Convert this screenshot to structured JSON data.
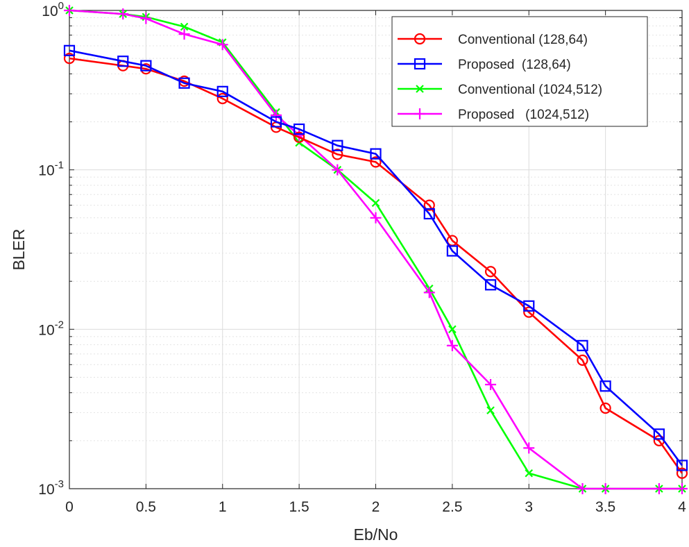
{
  "chart_data": {
    "type": "line",
    "xlabel": "Eb/No",
    "ylabel": "BLER",
    "xlim": [
      0,
      4
    ],
    "ylim": [
      0.001,
      1
    ],
    "yscale": "log",
    "grid": true,
    "minor_grid": true,
    "legend_position": "top-right",
    "x_ticks": [
      "0",
      "0.5",
      "1",
      "1.5",
      "2",
      "2.5",
      "3",
      "3.5",
      "4"
    ],
    "y_ticks": [
      {
        "value": 1,
        "base": "10",
        "exp": "0"
      },
      {
        "value": 0.1,
        "base": "10",
        "exp": "-1"
      },
      {
        "value": 0.01,
        "base": "10",
        "exp": "-2"
      },
      {
        "value": 0.001,
        "base": "10",
        "exp": "-3"
      }
    ],
    "series": [
      {
        "name": "Conventional (128,64)",
        "color": "#ff0000",
        "marker": "circle",
        "x": [
          0,
          0.35,
          0.5,
          0.75,
          1,
          1.35,
          1.5,
          1.75,
          2,
          2.35,
          2.5,
          2.75,
          3,
          3.35,
          3.5,
          3.85,
          4
        ],
        "y": [
          0.5,
          0.45,
          0.43,
          0.36,
          0.28,
          0.185,
          0.16,
          0.125,
          0.112,
          0.06,
          0.036,
          0.023,
          0.0128,
          0.0064,
          0.0032,
          0.002,
          0.00125
        ]
      },
      {
        "name": "Proposed  (128,64)",
        "color": "#0000ff",
        "marker": "square",
        "x": [
          0,
          0.35,
          0.5,
          0.75,
          1,
          1.35,
          1.5,
          1.75,
          2,
          2.35,
          2.5,
          2.75,
          3,
          3.35,
          3.5,
          3.85,
          4
        ],
        "y": [
          0.56,
          0.48,
          0.45,
          0.35,
          0.31,
          0.2,
          0.18,
          0.142,
          0.126,
          0.053,
          0.031,
          0.019,
          0.014,
          0.0079,
          0.0044,
          0.0022,
          0.0014
        ]
      },
      {
        "name": "Conventional (1024,512)",
        "color": "#00ff00",
        "marker": "x",
        "x": [
          0,
          0.35,
          0.5,
          0.75,
          1,
          1.35,
          1.5,
          1.75,
          2,
          2.35,
          2.5,
          2.75,
          3,
          3.35,
          3.5,
          3.85,
          4
        ],
        "y": [
          1.0,
          0.95,
          0.91,
          0.79,
          0.63,
          0.23,
          0.148,
          0.1,
          0.062,
          0.018,
          0.01,
          0.0031,
          0.00125,
          0.001,
          0.001,
          0.001,
          0.001
        ]
      },
      {
        "name": "Proposed   (1024,512)",
        "color": "#ff00ff",
        "marker": "plus",
        "x": [
          0,
          0.35,
          0.5,
          0.75,
          1,
          1.35,
          1.5,
          1.75,
          2,
          2.35,
          2.5,
          2.75,
          3,
          3.35,
          3.5,
          3.85,
          4
        ],
        "y": [
          1.0,
          0.95,
          0.89,
          0.71,
          0.61,
          0.22,
          0.165,
          0.1,
          0.05,
          0.017,
          0.0079,
          0.0045,
          0.0018,
          0.001,
          0.001,
          0.001,
          0.001
        ]
      }
    ]
  }
}
